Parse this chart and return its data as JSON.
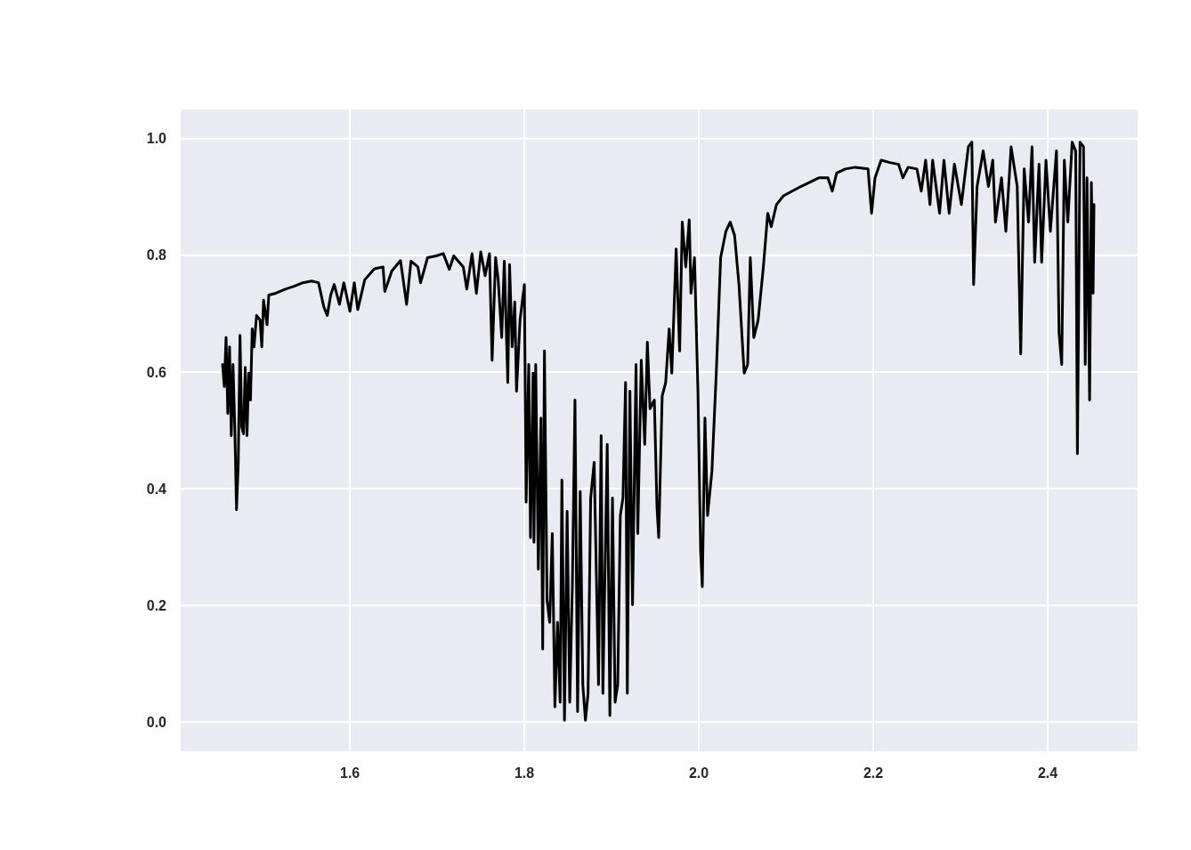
{
  "chart_data": {
    "type": "line",
    "xlim": [
      1.406,
      2.503
    ],
    "ylim": [
      -0.05,
      1.05
    ],
    "xticks": [
      1.6,
      1.8,
      {
        "value": 2,
        "label": "2.0"
      },
      2.2,
      2.4
    ],
    "yticks": [
      {
        "value": 0,
        "label": "0.0"
      },
      0.2,
      0.4,
      0.6,
      0.8,
      {
        "value": 1,
        "label": "1.0"
      }
    ],
    "grid": true,
    "marker": "none",
    "line_style": "solid",
    "series": [
      {
        "color": "#000000",
        "x": [
          1.454,
          1.456,
          1.458,
          1.46,
          1.462,
          1.464,
          1.466,
          1.468,
          1.47,
          1.472,
          1.474,
          1.476,
          1.478,
          1.48,
          1.482,
          1.484,
          1.486,
          1.488,
          1.49,
          1.493,
          1.497,
          1.499,
          1.501,
          1.505,
          1.507,
          1.515,
          1.526,
          1.536,
          1.546,
          1.556,
          1.564,
          1.57,
          1.574,
          1.578,
          1.582,
          1.588,
          1.593,
          1.6,
          1.605,
          1.609,
          1.617,
          1.628,
          1.638,
          1.64,
          1.648,
          1.658,
          1.665,
          1.67,
          1.678,
          1.681,
          1.689,
          1.699,
          1.707,
          1.714,
          1.719,
          1.73,
          1.734,
          1.74,
          1.745,
          1.75,
          1.755,
          1.76,
          1.763,
          1.767,
          1.77,
          1.774,
          1.777,
          1.781,
          1.783,
          1.786,
          1.789,
          1.791,
          1.795,
          1.8,
          1.802,
          1.805,
          1.807,
          1.81,
          1.811,
          1.813,
          1.816,
          1.819,
          1.821,
          1.823,
          1.826,
          1.829,
          1.832,
          1.835,
          1.838,
          1.841,
          1.843,
          1.846,
          1.849,
          1.852,
          1.855,
          1.858,
          1.861,
          1.864,
          1.867,
          1.87,
          1.873,
          1.876,
          1.88,
          1.885,
          1.888,
          1.89,
          1.895,
          1.898,
          1.901,
          1.904,
          1.907,
          1.91,
          1.913,
          1.916,
          1.918,
          1.921,
          1.924,
          1.928,
          1.93,
          1.934,
          1.938,
          1.941,
          1.944,
          1.949,
          1.952,
          1.954,
          1.958,
          1.962,
          1.966,
          1.969,
          1.974,
          1.978,
          1.981,
          1.985,
          1.989,
          1.991,
          1.995,
          1.999,
          2.002,
          2.004,
          2.007,
          2.01,
          2.015,
          2.02,
          2.025,
          2.031,
          2.036,
          2.041,
          2.046,
          2.052,
          2.056,
          2.059,
          2.063,
          2.068,
          2.074,
          2.079,
          2.083,
          2.089,
          2.097,
          2.107,
          2.117,
          2.127,
          2.138,
          2.148,
          2.153,
          2.158,
          2.168,
          2.179,
          2.194,
          2.198,
          2.202,
          2.209,
          2.219,
          2.229,
          2.234,
          2.24,
          2.25,
          2.255,
          2.26,
          2.265,
          2.268,
          2.276,
          2.281,
          2.287,
          2.293,
          2.301,
          2.309,
          2.313,
          2.315,
          2.319,
          2.326,
          2.332,
          2.337,
          2.34,
          2.347,
          2.352,
          2.358,
          2.365,
          2.369,
          2.373,
          2.378,
          2.382,
          2.385,
          2.39,
          2.393,
          2.398,
          2.403,
          2.41,
          2.413,
          2.416,
          2.419,
          2.423,
          2.428,
          2.432,
          2.434,
          2.437,
          2.441,
          2.443,
          2.445,
          2.448,
          2.45,
          2.452,
          2.453
        ],
        "values": [
          0.613,
          0.575,
          0.659,
          0.529,
          0.643,
          0.491,
          0.613,
          0.506,
          0.364,
          0.445,
          0.663,
          0.506,
          0.494,
          0.608,
          0.491,
          0.598,
          0.552,
          0.674,
          0.643,
          0.697,
          0.689,
          0.643,
          0.723,
          0.681,
          0.732,
          0.735,
          0.742,
          0.747,
          0.753,
          0.756,
          0.753,
          0.712,
          0.697,
          0.732,
          0.75,
          0.716,
          0.753,
          0.704,
          0.753,
          0.707,
          0.758,
          0.777,
          0.78,
          0.738,
          0.773,
          0.791,
          0.716,
          0.79,
          0.78,
          0.753,
          0.796,
          0.799,
          0.803,
          0.776,
          0.799,
          0.78,
          0.742,
          0.803,
          0.735,
          0.806,
          0.765,
          0.803,
          0.62,
          0.796,
          0.758,
          0.659,
          0.79,
          0.582,
          0.784,
          0.643,
          0.72,
          0.567,
          0.689,
          0.75,
          0.377,
          0.613,
          0.316,
          0.598,
          0.308,
          0.613,
          0.262,
          0.521,
          0.125,
          0.636,
          0.209,
          0.171,
          0.323,
          0.026,
          0.171,
          0.034,
          0.415,
          0.003,
          0.361,
          0.034,
          0.232,
          0.552,
          0.018,
          0.395,
          0.064,
          0.003,
          0.049,
          0.384,
          0.445,
          0.064,
          0.491,
          0.049,
          0.476,
          0.011,
          0.384,
          0.034,
          0.064,
          0.354,
          0.384,
          0.582,
          0.049,
          0.567,
          0.201,
          0.613,
          0.323,
          0.62,
          0.476,
          0.651,
          0.537,
          0.552,
          0.369,
          0.316,
          0.559,
          0.582,
          0.674,
          0.598,
          0.811,
          0.636,
          0.857,
          0.78,
          0.861,
          0.735,
          0.796,
          0.567,
          0.293,
          0.232,
          0.521,
          0.354,
          0.43,
          0.598,
          0.796,
          0.841,
          0.857,
          0.834,
          0.75,
          0.598,
          0.613,
          0.796,
          0.659,
          0.689,
          0.78,
          0.872,
          0.849,
          0.887,
          0.902,
          0.91,
          0.918,
          0.925,
          0.933,
          0.933,
          0.91,
          0.941,
          0.948,
          0.951,
          0.948,
          0.872,
          0.933,
          0.963,
          0.959,
          0.956,
          0.933,
          0.951,
          0.948,
          0.91,
          0.963,
          0.887,
          0.963,
          0.872,
          0.963,
          0.872,
          0.956,
          0.887,
          0.986,
          0.994,
          0.75,
          0.918,
          0.979,
          0.918,
          0.963,
          0.857,
          0.933,
          0.841,
          0.986,
          0.918,
          0.631,
          0.948,
          0.857,
          0.986,
          0.788,
          0.956,
          0.788,
          0.963,
          0.841,
          0.979,
          0.666,
          0.613,
          0.963,
          0.857,
          0.994,
          0.979,
          0.46,
          0.994,
          0.986,
          0.613,
          0.933,
          0.552,
          0.925,
          0.735,
          0.887
        ]
      }
    ]
  }
}
